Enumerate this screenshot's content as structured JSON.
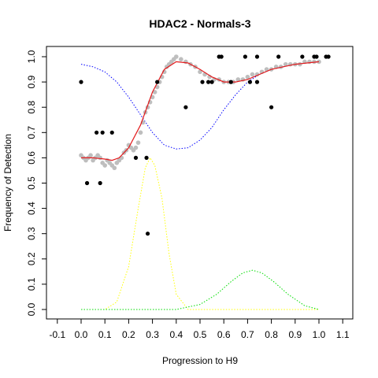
{
  "chart_data": {
    "type": "scatter",
    "title": "HDAC2 - Normals-3",
    "xlabel": "Progression to H9",
    "ylabel": "Frequency of Detection",
    "xlim": [
      -0.1,
      1.1
    ],
    "ylim": [
      0.0,
      1.0
    ],
    "x_ticks": [
      "-0.1",
      "0.0",
      "0.1",
      "0.2",
      "0.3",
      "0.4",
      "0.5",
      "0.6",
      "0.7",
      "0.8",
      "0.9",
      "1.0",
      "1.1"
    ],
    "y_ticks": [
      "0.0",
      "0.1",
      "0.2",
      "0.3",
      "0.4",
      "0.5",
      "0.6",
      "0.7",
      "0.8",
      "0.9",
      "1.0"
    ],
    "grid": false,
    "colors": {
      "observed": "#000000",
      "smoothed": "#bebebe",
      "fit": "#e31a1c",
      "blue_curve": "#0000ff",
      "yellow_curve": "#ffff00",
      "green_curve": "#00dd00"
    },
    "series": [
      {
        "kind": "points",
        "color_key": "observed",
        "points": [
          [
            0.0,
            0.9
          ],
          [
            0.025,
            0.5
          ],
          [
            0.065,
            0.7
          ],
          [
            0.08,
            0.5
          ],
          [
            0.09,
            0.7
          ],
          [
            0.13,
            0.7
          ],
          [
            0.23,
            0.6
          ],
          [
            0.275,
            0.6
          ],
          [
            0.28,
            0.3
          ],
          [
            0.32,
            0.9
          ],
          [
            0.44,
            0.8
          ],
          [
            0.51,
            0.9
          ],
          [
            0.535,
            0.9
          ],
          [
            0.55,
            0.9
          ],
          [
            0.58,
            1.0
          ],
          [
            0.59,
            1.0
          ],
          [
            0.63,
            0.9
          ],
          [
            0.69,
            1.0
          ],
          [
            0.71,
            0.9
          ],
          [
            0.74,
            0.9
          ],
          [
            0.74,
            1.0
          ],
          [
            0.8,
            0.8
          ],
          [
            0.83,
            1.0
          ],
          [
            0.93,
            1.0
          ],
          [
            0.98,
            1.0
          ],
          [
            0.99,
            1.0
          ],
          [
            1.03,
            1.0
          ],
          [
            1.04,
            1.0
          ]
        ]
      },
      {
        "kind": "points",
        "color_key": "smoothed",
        "points": [
          [
            0.0,
            0.61
          ],
          [
            0.01,
            0.6
          ],
          [
            0.02,
            0.59
          ],
          [
            0.03,
            0.6
          ],
          [
            0.04,
            0.61
          ],
          [
            0.05,
            0.59
          ],
          [
            0.06,
            0.6
          ],
          [
            0.07,
            0.61
          ],
          [
            0.08,
            0.6
          ],
          [
            0.09,
            0.58
          ],
          [
            0.1,
            0.57
          ],
          [
            0.11,
            0.59
          ],
          [
            0.12,
            0.58
          ],
          [
            0.13,
            0.57
          ],
          [
            0.14,
            0.56
          ],
          [
            0.15,
            0.58
          ],
          [
            0.16,
            0.59
          ],
          [
            0.17,
            0.6
          ],
          [
            0.18,
            0.62
          ],
          [
            0.19,
            0.63
          ],
          [
            0.2,
            0.65
          ],
          [
            0.21,
            0.64
          ],
          [
            0.22,
            0.63
          ],
          [
            0.23,
            0.64
          ],
          [
            0.24,
            0.66
          ],
          [
            0.25,
            0.7
          ],
          [
            0.26,
            0.74
          ],
          [
            0.27,
            0.78
          ],
          [
            0.28,
            0.8
          ],
          [
            0.29,
            0.82
          ],
          [
            0.3,
            0.84
          ],
          [
            0.31,
            0.86
          ],
          [
            0.32,
            0.88
          ],
          [
            0.33,
            0.9
          ],
          [
            0.34,
            0.92
          ],
          [
            0.35,
            0.94
          ],
          [
            0.36,
            0.96
          ],
          [
            0.37,
            0.97
          ],
          [
            0.38,
            0.98
          ],
          [
            0.39,
            0.99
          ],
          [
            0.4,
            1.0
          ],
          [
            0.42,
            0.99
          ],
          [
            0.44,
            0.98
          ],
          [
            0.46,
            0.97
          ],
          [
            0.48,
            0.96
          ],
          [
            0.5,
            0.94
          ],
          [
            0.52,
            0.93
          ],
          [
            0.54,
            0.92
          ],
          [
            0.56,
            0.91
          ],
          [
            0.58,
            0.91
          ],
          [
            0.6,
            0.9
          ],
          [
            0.62,
            0.9
          ],
          [
            0.64,
            0.9
          ],
          [
            0.66,
            0.91
          ],
          [
            0.68,
            0.91
          ],
          [
            0.7,
            0.92
          ],
          [
            0.72,
            0.93
          ],
          [
            0.74,
            0.93
          ],
          [
            0.76,
            0.94
          ],
          [
            0.78,
            0.95
          ],
          [
            0.8,
            0.95
          ],
          [
            0.82,
            0.96
          ],
          [
            0.84,
            0.96
          ],
          [
            0.86,
            0.97
          ],
          [
            0.88,
            0.97
          ],
          [
            0.9,
            0.97
          ],
          [
            0.92,
            0.97
          ],
          [
            0.94,
            0.98
          ],
          [
            0.96,
            0.98
          ],
          [
            0.98,
            0.98
          ],
          [
            1.0,
            0.98
          ]
        ]
      },
      {
        "kind": "line",
        "color_key": "fit",
        "points": [
          [
            0.0,
            0.6
          ],
          [
            0.05,
            0.6
          ],
          [
            0.1,
            0.595
          ],
          [
            0.13,
            0.59
          ],
          [
            0.16,
            0.6
          ],
          [
            0.2,
            0.64
          ],
          [
            0.25,
            0.73
          ],
          [
            0.3,
            0.86
          ],
          [
            0.35,
            0.95
          ],
          [
            0.4,
            0.98
          ],
          [
            0.45,
            0.975
          ],
          [
            0.5,
            0.95
          ],
          [
            0.55,
            0.92
          ],
          [
            0.6,
            0.9
          ],
          [
            0.65,
            0.9
          ],
          [
            0.7,
            0.91
          ],
          [
            0.75,
            0.93
          ],
          [
            0.8,
            0.95
          ],
          [
            0.85,
            0.96
          ],
          [
            0.9,
            0.97
          ],
          [
            0.95,
            0.975
          ],
          [
            1.0,
            0.98
          ]
        ]
      },
      {
        "kind": "dotted",
        "color_key": "blue_curve",
        "points": [
          [
            0.0,
            0.97
          ],
          [
            0.05,
            0.96
          ],
          [
            0.1,
            0.94
          ],
          [
            0.15,
            0.9
          ],
          [
            0.2,
            0.84
          ],
          [
            0.25,
            0.77
          ],
          [
            0.3,
            0.7
          ],
          [
            0.35,
            0.65
          ],
          [
            0.4,
            0.635
          ],
          [
            0.45,
            0.64
          ],
          [
            0.5,
            0.67
          ],
          [
            0.55,
            0.72
          ],
          [
            0.6,
            0.79
          ],
          [
            0.65,
            0.85
          ],
          [
            0.7,
            0.9
          ],
          [
            0.75,
            0.93
          ],
          [
            0.8,
            0.95
          ],
          [
            0.85,
            0.96
          ],
          [
            0.9,
            0.97
          ],
          [
            0.95,
            0.975
          ],
          [
            1.0,
            0.98
          ]
        ]
      },
      {
        "kind": "dotted",
        "color_key": "yellow_curve",
        "points": [
          [
            0.0,
            0.0
          ],
          [
            0.1,
            0.0
          ],
          [
            0.15,
            0.03
          ],
          [
            0.2,
            0.17
          ],
          [
            0.24,
            0.4
          ],
          [
            0.27,
            0.56
          ],
          [
            0.29,
            0.6
          ],
          [
            0.31,
            0.57
          ],
          [
            0.34,
            0.44
          ],
          [
            0.37,
            0.22
          ],
          [
            0.4,
            0.06
          ],
          [
            0.45,
            0.0
          ],
          [
            1.0,
            0.0
          ]
        ]
      },
      {
        "kind": "dotted",
        "color_key": "green_curve",
        "points": [
          [
            0.0,
            0.0
          ],
          [
            0.4,
            0.0
          ],
          [
            0.5,
            0.02
          ],
          [
            0.57,
            0.06
          ],
          [
            0.63,
            0.11
          ],
          [
            0.68,
            0.145
          ],
          [
            0.72,
            0.155
          ],
          [
            0.76,
            0.145
          ],
          [
            0.81,
            0.11
          ],
          [
            0.87,
            0.06
          ],
          [
            0.94,
            0.015
          ],
          [
            1.0,
            0.0
          ]
        ]
      }
    ]
  }
}
